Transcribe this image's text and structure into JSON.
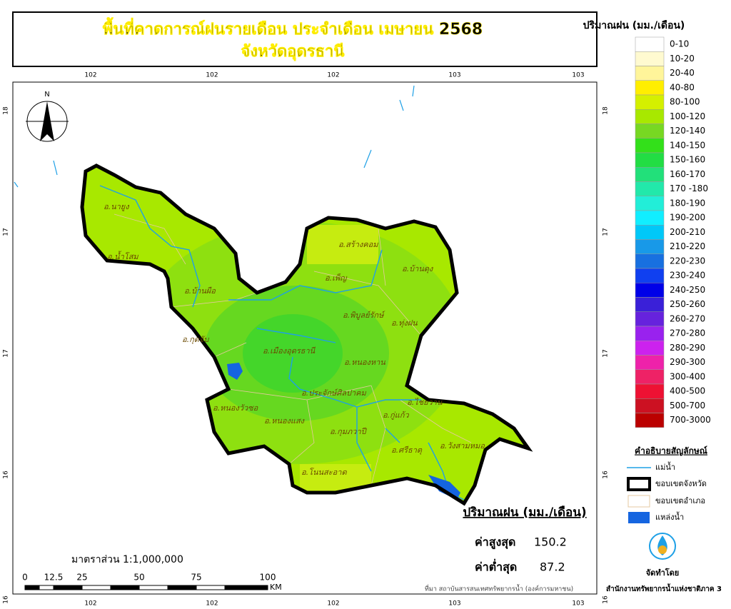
{
  "header": {
    "title": "พื้นที่คาดการณ์ฝนรายเดือน ประจำเดือน เมษายน 2568",
    "subtitle": "จังหวัดอุดรธานี"
  },
  "map": {
    "north": "N",
    "top_labels": [
      "102",
      "102",
      "102",
      "103",
      "103"
    ],
    "bottom_labels": [
      "102",
      "102",
      "102",
      "103",
      "103"
    ],
    "left_labels": [
      "18",
      "17",
      "17",
      "16",
      "16"
    ],
    "right_labels": [
      "18",
      "17",
      "17",
      "16",
      "16"
    ],
    "districts": [
      "อ.นายูง",
      "อ.น้ำโสม",
      "อ.บ้านผือ",
      "อ.กุดจับ",
      "อ.หนองวัวซอ",
      "อ.หนองแสง",
      "อ.เมืองอุดรธานี",
      "อ.ประจักษ์ศิลปาคม",
      "อ.กุมภวาปี",
      "อ.โนนสะอาด",
      "อ.สร้างคอม",
      "อ.เพ็ญ",
      "อ.บ้านดุง",
      "อ.พิบูลย์รักษ์",
      "อ.ทุ่งฝน",
      "อ.หนองหาน",
      "อ.ไชยวาน",
      "อ.กู่แก้ว",
      "อ.ศรีธาตุ",
      "อ.วังสามหมอ"
    ]
  },
  "rain_legend": {
    "title": "ปริมาณฝน (มม./เดือน)",
    "classes": [
      {
        "label": "0-10",
        "color": "#ffffff"
      },
      {
        "label": "10-20",
        "color": "#fffad0"
      },
      {
        "label": "20-40",
        "color": "#fff59a"
      },
      {
        "label": "40-80",
        "color": "#ffee00"
      },
      {
        "label": "80-100",
        "color": "#d4f000"
      },
      {
        "label": "100-120",
        "color": "#a8e800"
      },
      {
        "label": "120-140",
        "color": "#77d822"
      },
      {
        "label": "140-150",
        "color": "#33e01a"
      },
      {
        "label": "150-160",
        "color": "#22dd44"
      },
      {
        "label": "160-170",
        "color": "#22e07a"
      },
      {
        "label": "170 -180",
        "color": "#22e8aa"
      },
      {
        "label": "180-190",
        "color": "#22eed8"
      },
      {
        "label": "190-200",
        "color": "#11eeff"
      },
      {
        "label": "200-210",
        "color": "#00c8f8"
      },
      {
        "label": "210-220",
        "color": "#1899e8"
      },
      {
        "label": "220-230",
        "color": "#1870e0"
      },
      {
        "label": "230-240",
        "color": "#1040f0"
      },
      {
        "label": "240-250",
        "color": "#0000e8"
      },
      {
        "label": "250-260",
        "color": "#3a20d8"
      },
      {
        "label": "260-270",
        "color": "#6622dd"
      },
      {
        "label": "270-280",
        "color": "#9922ee"
      },
      {
        "label": "280-290",
        "color": "#cc22ee"
      },
      {
        "label": "290-300",
        "color": "#ee22aa"
      },
      {
        "label": "300-400",
        "color": "#ee2266"
      },
      {
        "label": "400-500",
        "color": "#ee1133"
      },
      {
        "label": "500-700",
        "color": "#cc1122"
      },
      {
        "label": "700-3000",
        "color": "#bb0000"
      }
    ]
  },
  "symbol_legend": {
    "title": "คำอธิบายสัญลักษณ์",
    "items": [
      "แม่น้ำ",
      "ขอบเขตจังหวัด",
      "ขอบเขตอำเภอ",
      "แหล่งน้ำ"
    ]
  },
  "stats": {
    "title": "ปริมาณฝน (มม./เดือน)",
    "max_label": "ค่าสูงสุด",
    "max_value": "150.2",
    "min_label": "ค่าต่ำสุด",
    "min_value": "87.2"
  },
  "scale": {
    "text": "มาตราส่วน 1:1,000,000",
    "ticks": [
      "0",
      "12.5",
      "25",
      "50",
      "75",
      "100"
    ],
    "unit": "KM"
  },
  "footer": {
    "source": "ที่มา  สถาบันสารสนเทศทรัพยากรน้ำ (องค์การมหาชน)",
    "made_by": "จัดทำโดย",
    "agency": "สำนักงานทรัพยากรน้ำแห่งชาติภาค 3"
  }
}
